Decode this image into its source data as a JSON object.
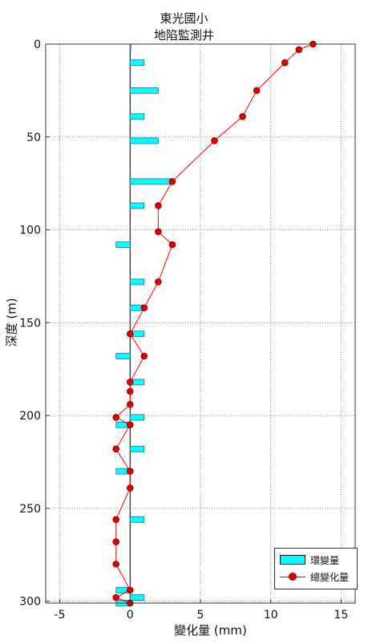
{
  "chart_data": {
    "type": "bar+line",
    "orientation": "horizontal",
    "title_line1": "東光國小",
    "title_line2": "地陷監測井",
    "xlabel": "變化量 (mm)",
    "ylabel": "深度 (m)",
    "xlim": [
      -6,
      16
    ],
    "ylim": [
      0,
      301
    ],
    "y_reversed": true,
    "xticks": [
      -5,
      0,
      5,
      10,
      15
    ],
    "yticks": [
      0,
      50,
      100,
      150,
      200,
      250,
      300
    ],
    "grid": true,
    "legend_position": "bottom-right",
    "series": [
      {
        "name": "環變量",
        "kind": "bar",
        "color": "#00ffff",
        "depths": [
          2,
          10,
          25,
          39,
          52,
          74,
          87,
          108,
          128,
          142,
          156,
          168,
          182,
          201,
          205,
          218,
          230,
          256,
          294,
          298,
          301
        ],
        "values": [
          0,
          1,
          2,
          1,
          2,
          3,
          1,
          -1,
          1,
          1,
          1,
          -1,
          1,
          1,
          -1,
          1,
          -1,
          1,
          -1,
          1,
          -1
        ]
      },
      {
        "name": "總變化量",
        "kind": "line",
        "color": "#ff0000",
        "depths": [
          0,
          3,
          10,
          25,
          39,
          52,
          74,
          87,
          101,
          108,
          128,
          142,
          156,
          168,
          182,
          187,
          194,
          201,
          205,
          218,
          230,
          239,
          256,
          268,
          280,
          294,
          298,
          301
        ],
        "values": [
          13,
          12,
          11,
          9,
          8,
          6,
          3,
          2,
          2,
          3,
          2,
          1,
          0,
          1,
          0,
          0,
          0,
          -1,
          0,
          -1,
          0,
          0,
          -1,
          -1,
          -1,
          0,
          -1,
          0
        ]
      }
    ]
  }
}
